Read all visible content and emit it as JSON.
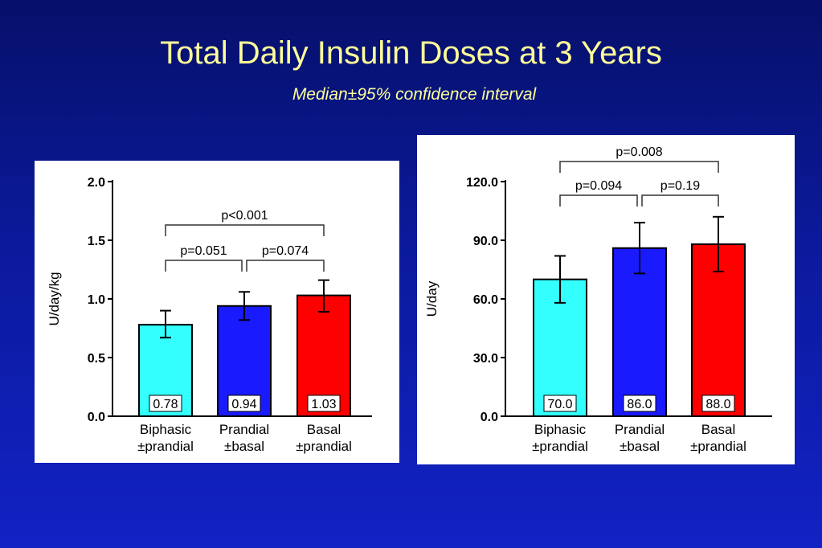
{
  "title": "Total Daily Insulin Doses at 3 Years",
  "subtitle": "Median±95% confidence interval",
  "colors": {
    "biphasic": "#33ffff",
    "prandial": "#1a1aff",
    "basal": "#ff0000"
  },
  "chart_data": [
    {
      "type": "bar",
      "ylabel": "U/day/kg",
      "ylim": [
        0,
        2.0
      ],
      "yticks": [
        "0.0",
        "0.5",
        "1.0",
        "1.5",
        "2.0"
      ],
      "categories": [
        {
          "line1": "Biphasic",
          "line2": "±prandial"
        },
        {
          "line1": "Prandial",
          "line2": "±basal"
        },
        {
          "line1": "Basal",
          "line2": "±prandial"
        }
      ],
      "values": [
        0.78,
        0.94,
        1.03
      ],
      "value_labels": [
        "0.78",
        "0.94",
        "1.03"
      ],
      "ci_low": [
        0.67,
        0.82,
        0.89
      ],
      "ci_high": [
        0.9,
        1.06,
        1.16
      ],
      "comparisons": [
        {
          "from": 0,
          "to": 1,
          "label": "p=0.051",
          "level": 0
        },
        {
          "from": 1,
          "to": 2,
          "label": "p=0.074",
          "level": 0
        },
        {
          "from": 0,
          "to": 2,
          "label": "p<0.001",
          "level": 1
        }
      ]
    },
    {
      "type": "bar",
      "ylabel": "U/day",
      "ylim": [
        0,
        120.0
      ],
      "yticks": [
        "0.0",
        "30.0",
        "60.0",
        "90.0",
        "120.0"
      ],
      "categories": [
        {
          "line1": "Biphasic",
          "line2": "±prandial"
        },
        {
          "line1": "Prandial",
          "line2": "±basal"
        },
        {
          "line1": "Basal",
          "line2": "±prandial"
        }
      ],
      "values": [
        70.0,
        86.0,
        88.0
      ],
      "value_labels": [
        "70.0",
        "86.0",
        "88.0"
      ],
      "ci_low": [
        58,
        73,
        74
      ],
      "ci_high": [
        82,
        99,
        102
      ],
      "comparisons": [
        {
          "from": 0,
          "to": 1,
          "label": "p=0.094",
          "level": 0
        },
        {
          "from": 1,
          "to": 2,
          "label": "p=0.19",
          "level": 0
        },
        {
          "from": 0,
          "to": 2,
          "label": "p=0.008",
          "level": 1
        }
      ]
    }
  ]
}
